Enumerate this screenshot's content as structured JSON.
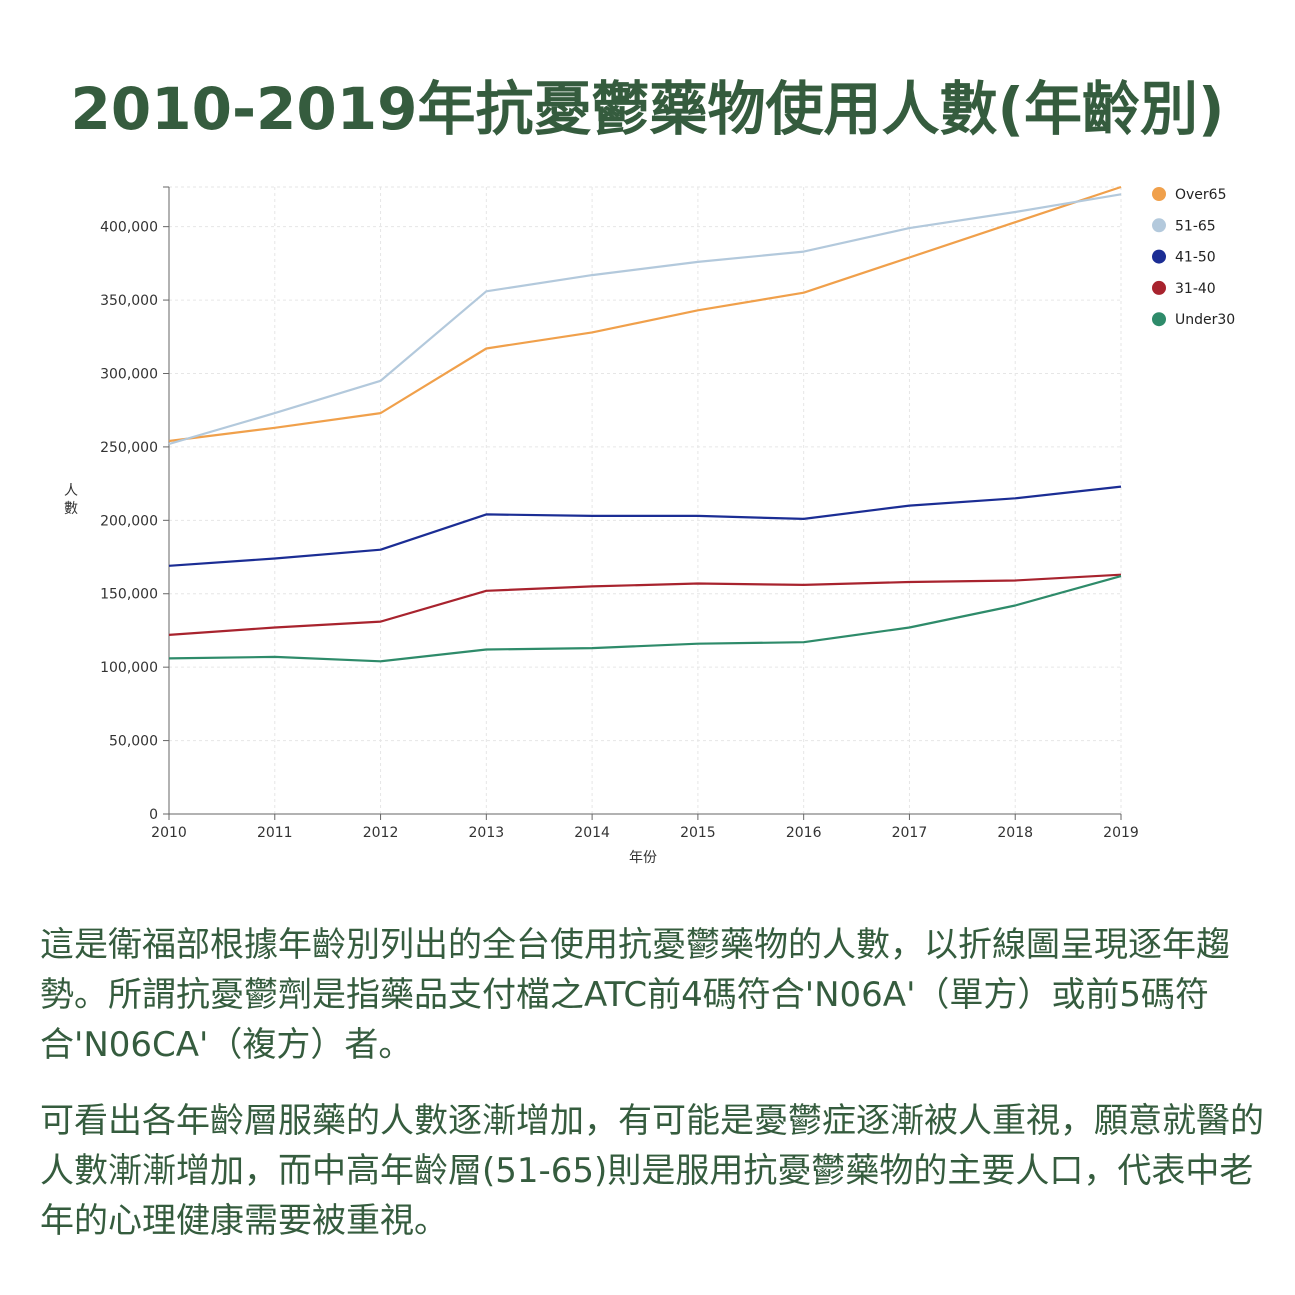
{
  "title": "2010-2019年抗憂鬱藥物使用人數(年齡別)",
  "chart_data": {
    "type": "line",
    "x": [
      2010,
      2011,
      2012,
      2013,
      2014,
      2015,
      2016,
      2017,
      2018,
      2019
    ],
    "xlabel": "年份",
    "ylabel": "人數",
    "ylim": [
      0,
      427000
    ],
    "yticks": [
      0,
      50000,
      100000,
      150000,
      200000,
      250000,
      300000,
      350000,
      400000
    ],
    "ytick_labels": [
      "0",
      "50,000",
      "100,000",
      "150,000",
      "200,000",
      "250,000",
      "300,000",
      "350,000",
      "400,000"
    ],
    "grid": true,
    "legend_position": "top-right",
    "series": [
      {
        "name": "Over65",
        "color": "#f0a04b",
        "values": [
          254000,
          263000,
          273000,
          317000,
          328000,
          343000,
          355000,
          379000,
          403000,
          427000
        ]
      },
      {
        "name": "51-65",
        "color": "#b3c9dc",
        "values": [
          252000,
          273000,
          295000,
          356000,
          367000,
          376000,
          383000,
          399000,
          410000,
          422000
        ]
      },
      {
        "name": "41-50",
        "color": "#1b2d94",
        "values": [
          169000,
          174000,
          180000,
          204000,
          203000,
          203000,
          201000,
          210000,
          215000,
          223000
        ]
      },
      {
        "name": "31-40",
        "color": "#a8232e",
        "values": [
          122000,
          127000,
          131000,
          152000,
          155000,
          157000,
          156000,
          158000,
          159000,
          163000
        ]
      },
      {
        "name": "Under30",
        "color": "#2e8b6a",
        "values": [
          106000,
          107000,
          104000,
          112000,
          113000,
          116000,
          117000,
          127000,
          142000,
          162000
        ]
      }
    ]
  },
  "paragraphs": [
    "這是衛福部根據年齡別列出的全台使用抗憂鬱藥物的人數，以折線圖呈現逐年趨勢。所謂抗憂鬱劑是指藥品支付檔之ATC前4碼符合'N06A'（單方）或前5碼符合'N06CA'（複方）者。",
    "可看出各年齡層服藥的人數逐漸增加，有可能是憂鬱症逐漸被人重視，願意就醫的人數漸漸增加，而中高年齡層(51-65)則是服用抗憂鬱藥物的主要人口，代表中老年的心理健康需要被重視。"
  ]
}
